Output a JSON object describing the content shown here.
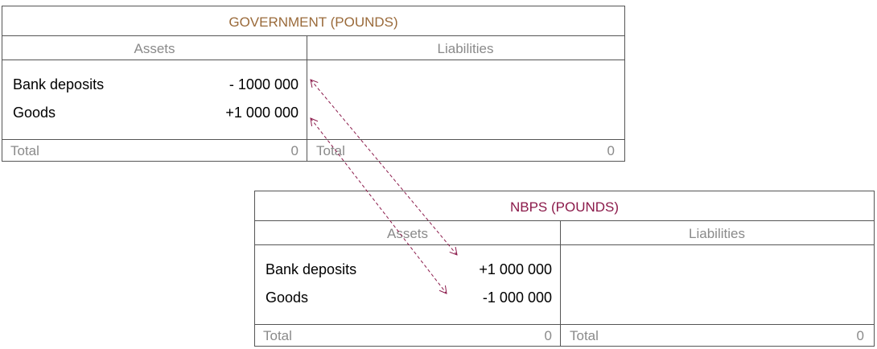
{
  "government": {
    "title": "GOVERNMENT (POUNDS)",
    "assets_header": "Assets",
    "liabilities_header": "Liabilities",
    "assets": [
      {
        "label": "Bank deposits",
        "value": "- 1000 000"
      },
      {
        "label": "Goods",
        "value": "+1 000 000"
      }
    ],
    "assets_total": {
      "label": "Total",
      "value": 0
    },
    "liabilities_total": {
      "label": "Total",
      "value": 0
    }
  },
  "nbps": {
    "title": "NBPS (POUNDS)",
    "assets_header": "Assets",
    "liabilities_header": "Liabilities",
    "assets": [
      {
        "label": "Bank deposits",
        "value": "+1 000 000"
      },
      {
        "label": "Goods",
        "value": "-1 000 000"
      }
    ],
    "assets_total": {
      "label": "Total",
      "value": 0
    },
    "liabilities_total": {
      "label": "Total",
      "value": 0
    }
  }
}
